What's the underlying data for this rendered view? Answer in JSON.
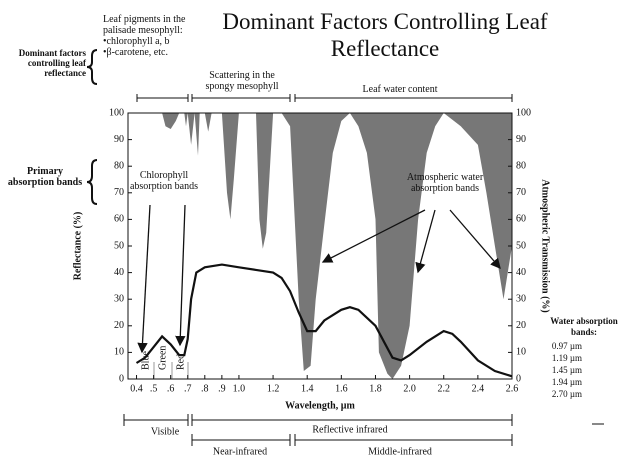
{
  "chart_data": {
    "type": "line",
    "title": "Dominant Factors Controlling Leaf Reflectance",
    "xlabel": "Wavelength, µm",
    "ylabel": "Reflectance (%)",
    "y2label": "Atmospheric Transmission (%)",
    "xlim": [
      0.35,
      2.6
    ],
    "xticks": [
      0.4,
      {
        "value": 0.5,
        "label": ".5"
      },
      {
        "value": 0.6,
        "label": ".6"
      },
      {
        "value": 0.7,
        "label": ".7"
      },
      {
        "value": 0.8,
        "label": ".8"
      },
      {
        "value": 0.9,
        "label": ".9"
      },
      {
        "value": 1,
        "label": "1.0"
      },
      1.2,
      1.4,
      1.6,
      1.8,
      {
        "value": 2,
        "label": "2.0"
      },
      2.2,
      2.4,
      2.6
    ],
    "ylim": [
      0,
      100
    ],
    "yticks": [
      0,
      10,
      20,
      30,
      40,
      50,
      60,
      70,
      80,
      90,
      100
    ],
    "y2lim": [
      0,
      100
    ],
    "y2ticks": [
      0,
      10,
      20,
      30,
      40,
      50,
      60,
      70,
      80,
      90,
      100
    ],
    "series": [
      {
        "color": "#111111",
        "x": [
          0.4,
          0.45,
          0.5,
          0.55,
          0.6,
          0.65,
          0.68,
          0.7,
          0.72,
          0.75,
          0.8,
          0.9,
          1.0,
          1.1,
          1.2,
          1.25,
          1.3,
          1.35,
          1.4,
          1.45,
          1.5,
          1.6,
          1.65,
          1.7,
          1.8,
          1.85,
          1.9,
          1.95,
          2.0,
          2.1,
          2.2,
          2.25,
          2.3,
          2.4,
          2.5,
          2.6
        ],
        "values": [
          6,
          8,
          12,
          16,
          13,
          9,
          9,
          15,
          30,
          40,
          42,
          43,
          42,
          41,
          40,
          38,
          33,
          25,
          18,
          18,
          22,
          26,
          27,
          26,
          20,
          14,
          8,
          7,
          9,
          14,
          18,
          17,
          14,
          7,
          3,
          1
        ]
      },
      {
        "color": "#777777",
        "axis": "y2",
        "x": [
          0.4,
          0.55,
          0.57,
          0.6,
          0.63,
          0.65,
          0.68,
          0.69,
          0.7,
          0.72,
          0.74,
          0.76,
          0.77,
          0.8,
          0.82,
          0.84,
          0.9,
          0.93,
          0.95,
          0.97,
          1.0,
          1.1,
          1.12,
          1.14,
          1.16,
          1.2,
          1.25,
          1.3,
          1.35,
          1.38,
          1.42,
          1.45,
          1.5,
          1.55,
          1.6,
          1.65,
          1.7,
          1.75,
          1.8,
          1.82,
          1.87,
          1.9,
          1.95,
          2.0,
          2.05,
          2.1,
          2.15,
          2.2,
          2.3,
          2.4,
          2.45,
          2.5,
          2.55,
          2.6
        ],
        "values": [
          100,
          100,
          95,
          94,
          97,
          100,
          100,
          95,
          100,
          88,
          100,
          84,
          100,
          100,
          93,
          100,
          100,
          70,
          60,
          75,
          100,
          100,
          60,
          49,
          55,
          100,
          100,
          95,
          30,
          3,
          5,
          30,
          58,
          85,
          97,
          100,
          95,
          85,
          60,
          10,
          2,
          0,
          5,
          20,
          60,
          85,
          95,
          100,
          95,
          88,
          70,
          50,
          30,
          50
        ]
      }
    ],
    "annotations": {
      "factors_heading": "Dominant factors controlling leaf reflectance",
      "pigments": [
        "Leaf pigments in the palisade mesophyll:",
        "chlorophyll a, b",
        "β-carotene, etc."
      ],
      "scattering": "Scattering in the spongy mesophyll",
      "water": "Leaf water content",
      "primary": "Primary absorption bands",
      "chlorophyll": "Chlorophyll absorption bands",
      "atmospheric": "Atmospheric water absorption bands",
      "blue": "Blue",
      "green": "Green",
      "red": "Red",
      "visible": "Visible",
      "reflective_ir": "Reflective infrared",
      "near_ir": "Near-infrared",
      "middle_ir": "Middle-infrared",
      "water_bands_heading": "Water absorption bands:",
      "water_bands": [
        "0.97 µm",
        "1.19 µm",
        "1.45 µm",
        "1.94 µm",
        "2.70 µm"
      ]
    }
  }
}
